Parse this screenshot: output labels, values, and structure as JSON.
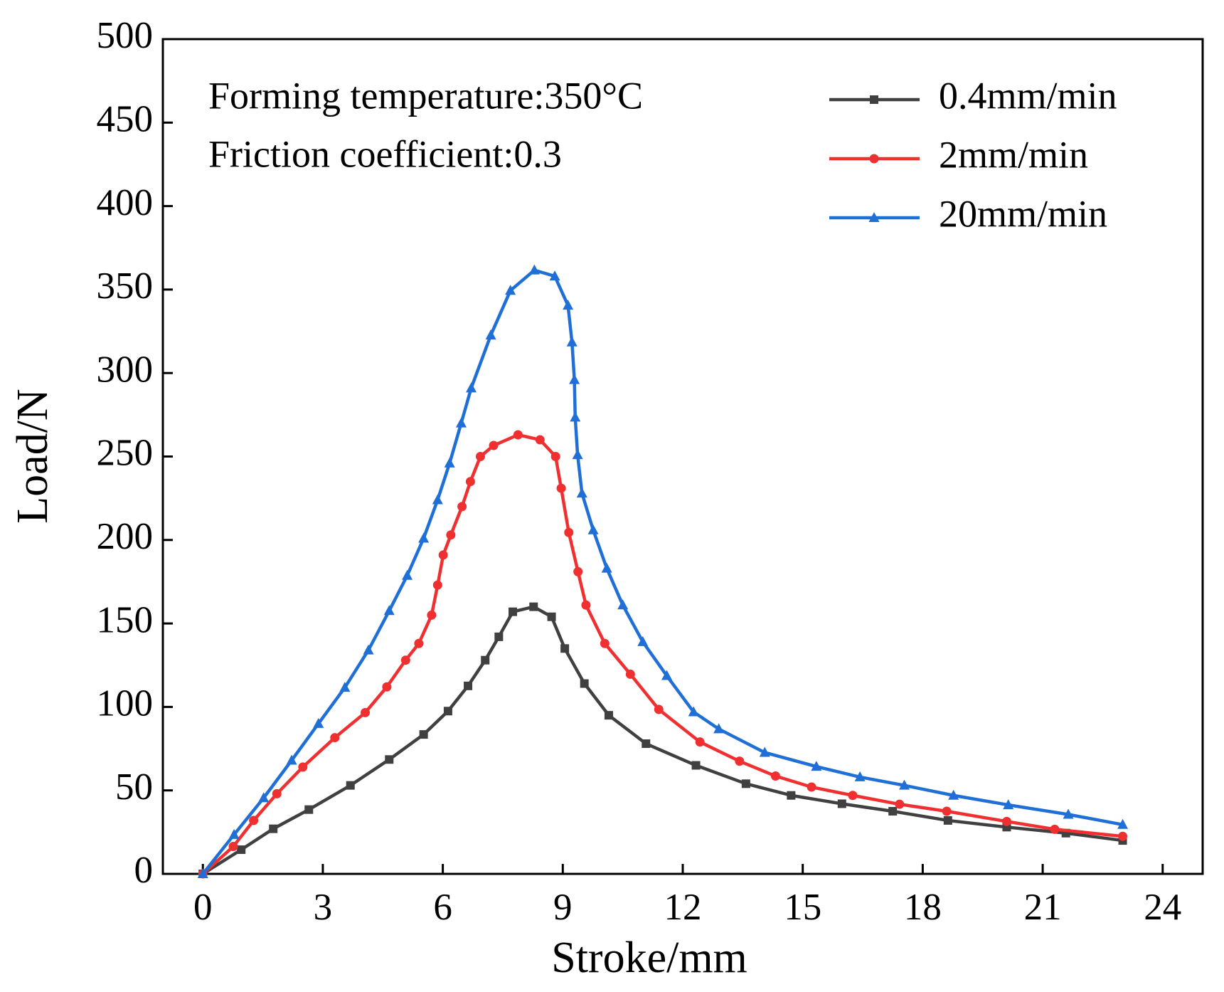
{
  "chart_data": {
    "type": "line",
    "xlabel": "Stroke/mm",
    "ylabel": "Load/N",
    "annotations": [
      "Forming temperature:350°C",
      "Friction coefficient:0.3"
    ],
    "xlim": [
      -1,
      25
    ],
    "xticks": [
      0,
      3,
      6,
      9,
      12,
      15,
      18,
      21,
      24
    ],
    "ylim": [
      0,
      500
    ],
    "yticks": [
      0,
      50,
      100,
      150,
      200,
      250,
      300,
      350,
      400,
      450,
      500
    ],
    "legend": "upper right",
    "series": [
      {
        "name": "0.4mm/min",
        "color": "#404040",
        "marker": "square",
        "x": [
          0,
          0.96,
          1.76,
          2.65,
          3.69,
          4.66,
          5.52,
          6.13,
          6.63,
          7.06,
          7.4,
          7.75,
          8.27,
          8.72,
          9.05,
          9.54,
          10.15,
          11.08,
          12.33,
          13.58,
          14.71,
          15.98,
          17.25,
          18.63,
          20.1,
          21.58,
          23
        ],
        "values": [
          0,
          14.5,
          27,
          38.5,
          53,
          68.5,
          83.5,
          97.5,
          112.6,
          128,
          142,
          157,
          160,
          154,
          135,
          114,
          95,
          78,
          65,
          54,
          47,
          42,
          37.5,
          32,
          28,
          24.4,
          20
        ]
      },
      {
        "name": "2mm/min",
        "color": "#f03030",
        "marker": "circle",
        "x": [
          0,
          0.76,
          1.27,
          1.85,
          2.5,
          3.3,
          4.06,
          4.6,
          5.07,
          5.4,
          5.72,
          5.87,
          6.01,
          6.2,
          6.48,
          6.69,
          6.94,
          7.27,
          7.88,
          8.43,
          8.82,
          8.96,
          9.15,
          9.38,
          9.58,
          10.05,
          10.69,
          11.4,
          12.43,
          13.42,
          14.32,
          15.22,
          16.25,
          17.42,
          18.6,
          20.1,
          21.3,
          23
        ],
        "values": [
          0,
          16.4,
          32,
          48,
          64,
          81.6,
          96.6,
          112,
          128,
          138,
          155,
          173,
          191,
          203,
          220,
          235,
          250,
          256.6,
          263,
          260,
          250,
          231,
          204.5,
          181,
          161,
          138,
          119.6,
          98.5,
          79,
          67.5,
          58.6,
          52,
          47,
          41.7,
          37.5,
          31.4,
          26.7,
          22.5
        ]
      },
      {
        "name": "20mm/min",
        "color": "#1f6fd6",
        "marker": "triangle",
        "x": [
          0,
          0.78,
          1.52,
          2.22,
          2.89,
          3.55,
          4.14,
          4.66,
          5.11,
          5.52,
          5.87,
          6.17,
          6.46,
          6.71,
          7.2,
          7.69,
          8.29,
          8.8,
          9.13,
          9.23,
          9.29,
          9.31,
          9.37,
          9.48,
          9.76,
          10.1,
          10.5,
          11.0,
          11.6,
          12.27,
          12.9,
          14.05,
          15.34,
          16.43,
          17.54,
          18.77,
          20.14,
          21.64,
          23
        ],
        "values": [
          0,
          23.5,
          45.5,
          68,
          90,
          111.6,
          134,
          157.6,
          178.7,
          201,
          224,
          246,
          270,
          291,
          322.7,
          349.4,
          361.6,
          358,
          340.5,
          318.5,
          296,
          273.5,
          251,
          228,
          206,
          183,
          161,
          139,
          118.7,
          97,
          86.8,
          72.7,
          64.3,
          58,
          53,
          47,
          41.3,
          35.6,
          29.5
        ]
      }
    ]
  }
}
